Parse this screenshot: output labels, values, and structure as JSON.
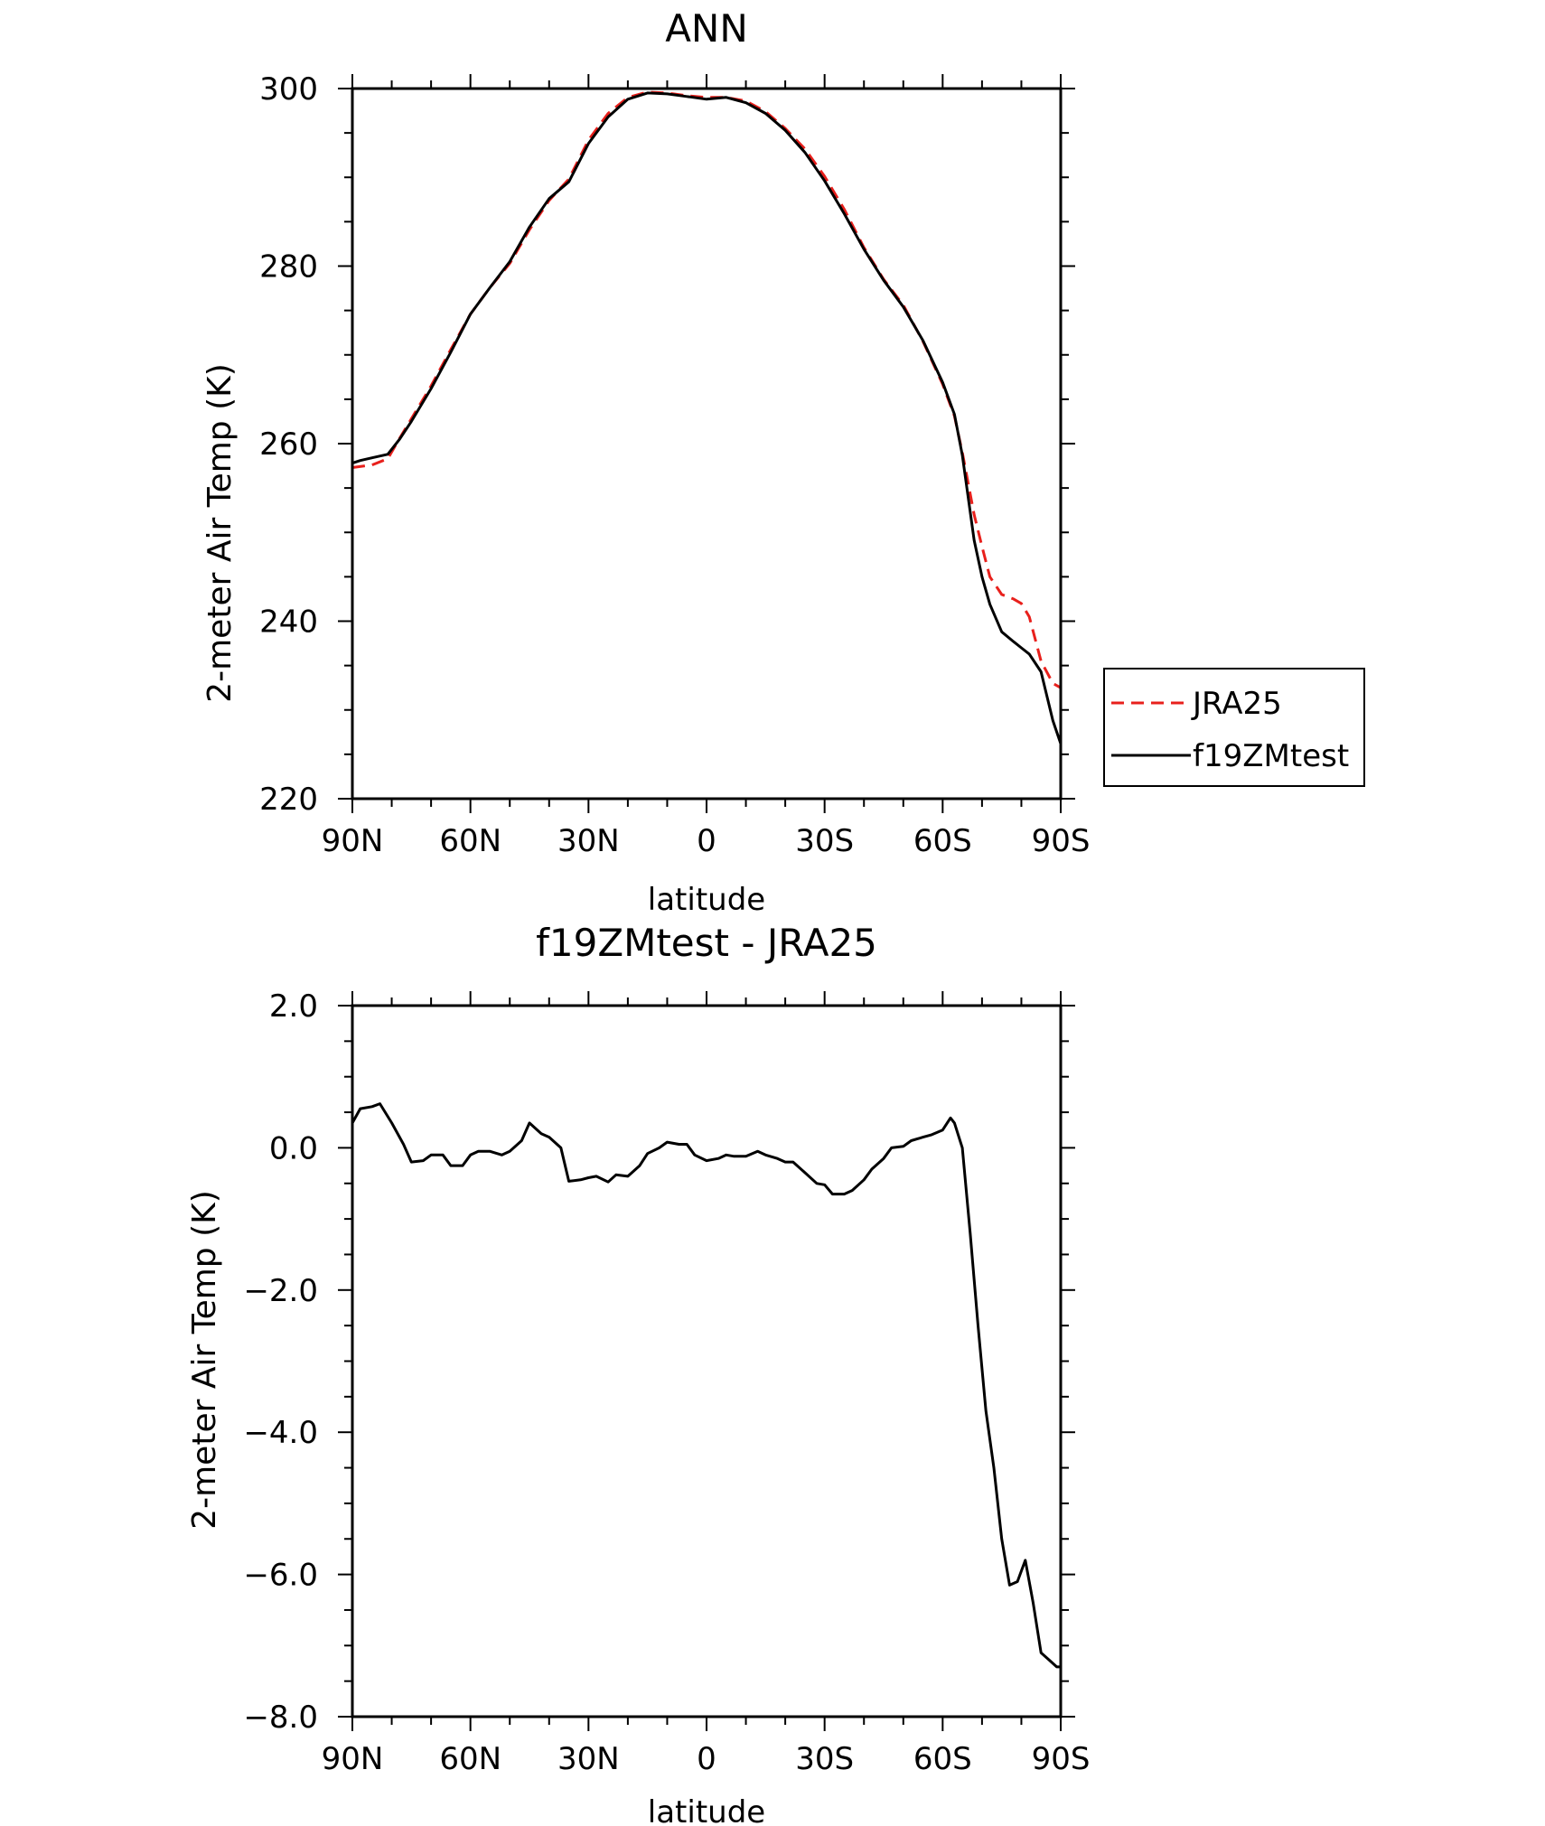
{
  "chart_data": [
    {
      "type": "line",
      "title": "ANN",
      "xlabel": "latitude",
      "ylabel": "2-meter Air Temp (K)",
      "xlim": [
        90,
        -90
      ],
      "ylim": [
        220,
        300
      ],
      "x_ticks": [
        {
          "value": 90,
          "label": "90N"
        },
        {
          "value": 60,
          "label": "60N"
        },
        {
          "value": 30,
          "label": "30N"
        },
        {
          "value": 0,
          "label": "0"
        },
        {
          "value": -30,
          "label": "30S"
        },
        {
          "value": -60,
          "label": "60S"
        },
        {
          "value": -90,
          "label": "90S"
        }
      ],
      "y_ticks": [
        {
          "value": 220,
          "label": "220"
        },
        {
          "value": 240,
          "label": "240"
        },
        {
          "value": 260,
          "label": "260"
        },
        {
          "value": 280,
          "label": "280"
        },
        {
          "value": 300,
          "label": "300"
        }
      ],
      "legend_position": "right",
      "series": [
        {
          "name": "JRA25",
          "color": "#e8201c",
          "dash": "dashed",
          "x": [
            90,
            85,
            81,
            78,
            75,
            70,
            65,
            60,
            55,
            50,
            45,
            40,
            35,
            30,
            25,
            20,
            15,
            10,
            5,
            0,
            -5,
            -10,
            -15,
            -20,
            -25,
            -30,
            -35,
            -40,
            -45,
            -50,
            -55,
            -60,
            -63,
            -65,
            -68,
            -70,
            -72,
            -75,
            -78,
            -80,
            -82,
            -85,
            -88,
            -90
          ],
          "y": [
            257.3,
            257.6,
            258.3,
            260.6,
            262.8,
            266.5,
            270.6,
            274.6,
            277.6,
            280.3,
            284.1,
            287.4,
            289.8,
            294.2,
            297.2,
            299.0,
            299.6,
            299.5,
            299.2,
            299.0,
            299.0,
            298.6,
            297.4,
            295.5,
            293.2,
            290.1,
            286.4,
            282.1,
            278.5,
            275.6,
            271.5,
            266.7,
            263.1,
            259.0,
            252.0,
            248.4,
            245.0,
            243.0,
            242.5,
            242.0,
            240.5,
            235.5,
            233.0,
            232.5
          ]
        },
        {
          "name": "f19ZMtest",
          "color": "#000000",
          "dash": "solid",
          "x": [
            90,
            88,
            85,
            81,
            78,
            75,
            70,
            65,
            60,
            55,
            50,
            45,
            40,
            35,
            30,
            25,
            20,
            15,
            10,
            5,
            0,
            -5,
            -10,
            -15,
            -20,
            -25,
            -30,
            -35,
            -40,
            -45,
            -50,
            -55,
            -60,
            -63,
            -65,
            -68,
            -70,
            -72,
            -75,
            -78,
            -80,
            -82,
            -85,
            -88,
            -90
          ],
          "y": [
            257.8,
            258.1,
            258.4,
            258.8,
            260.5,
            262.5,
            266.2,
            270.3,
            274.6,
            277.6,
            280.5,
            284.4,
            287.6,
            289.5,
            293.8,
            296.8,
            298.8,
            299.5,
            299.4,
            299.1,
            298.8,
            299.0,
            298.4,
            297.2,
            295.3,
            292.8,
            289.6,
            285.9,
            281.9,
            278.4,
            275.4,
            271.6,
            266.9,
            263.3,
            258.7,
            249.1,
            245.0,
            241.9,
            238.8,
            237.7,
            237.0,
            236.3,
            234.3,
            228.8,
            226.2
          ]
        }
      ]
    },
    {
      "type": "line",
      "title": "f19ZMtest - JRA25",
      "xlabel": "latitude",
      "ylabel": "2-meter Air Temp (K)",
      "xlim": [
        90,
        -90
      ],
      "ylim": [
        -8,
        2
      ],
      "x_ticks": [
        {
          "value": 90,
          "label": "90N"
        },
        {
          "value": 60,
          "label": "60N"
        },
        {
          "value": 30,
          "label": "30N"
        },
        {
          "value": 0,
          "label": "0"
        },
        {
          "value": -30,
          "label": "30S"
        },
        {
          "value": -60,
          "label": "60S"
        },
        {
          "value": -90,
          "label": "90S"
        }
      ],
      "y_ticks": [
        {
          "value": 2,
          "label": "2.0"
        },
        {
          "value": 0,
          "label": "0.0"
        },
        {
          "value": -2,
          "label": "-2.0"
        },
        {
          "value": -4,
          "label": "-4.0"
        },
        {
          "value": -6,
          "label": "-6.0"
        },
        {
          "value": -8,
          "label": "-8.0"
        }
      ],
      "series": [
        {
          "name": "",
          "color": "#000000",
          "dash": "solid",
          "x": [
            90,
            88,
            85,
            83,
            80,
            77,
            75,
            72,
            70,
            67,
            65,
            62,
            60,
            58,
            55,
            52,
            50,
            47,
            45,
            42,
            40,
            37,
            35,
            32,
            30,
            28,
            25,
            23,
            20,
            17,
            15,
            12,
            10,
            7,
            5,
            3,
            0,
            -3,
            -5,
            -7,
            -10,
            -13,
            -15,
            -18,
            -20,
            -22,
            -25,
            -28,
            -30,
            -32,
            -35,
            -37,
            -40,
            -42,
            -45,
            -47,
            -50,
            -52,
            -55,
            -57,
            -60,
            -62,
            -63,
            -65,
            -67,
            -69,
            -71,
            -73,
            -75,
            -77,
            -79,
            -81,
            -83,
            -85,
            -87,
            -89,
            -90
          ],
          "y": [
            0.35,
            0.55,
            0.58,
            0.62,
            0.35,
            0.05,
            -0.2,
            -0.18,
            -0.1,
            -0.1,
            -0.25,
            -0.25,
            -0.1,
            -0.05,
            -0.05,
            -0.1,
            -0.05,
            0.1,
            0.35,
            0.2,
            0.15,
            0.0,
            -0.47,
            -0.45,
            -0.42,
            -0.4,
            -0.48,
            -0.38,
            -0.4,
            -0.25,
            -0.08,
            0.0,
            0.08,
            0.05,
            0.05,
            -0.1,
            -0.18,
            -0.15,
            -0.1,
            -0.12,
            -0.12,
            -0.05,
            -0.1,
            -0.15,
            -0.2,
            -0.2,
            -0.35,
            -0.5,
            -0.52,
            -0.65,
            -0.65,
            -0.6,
            -0.45,
            -0.3,
            -0.15,
            0.0,
            0.02,
            0.1,
            0.15,
            0.18,
            0.25,
            0.42,
            0.35,
            0.0,
            -1.2,
            -2.5,
            -3.7,
            -4.5,
            -5.5,
            -6.15,
            -6.1,
            -5.8,
            -6.4,
            -7.1,
            -7.2,
            -7.3,
            -7.3
          ]
        }
      ]
    }
  ],
  "legend": [
    {
      "series": "JRA25",
      "label": "JRA25"
    },
    {
      "series": "f19ZMtest",
      "label": "f19ZMtest"
    }
  ]
}
